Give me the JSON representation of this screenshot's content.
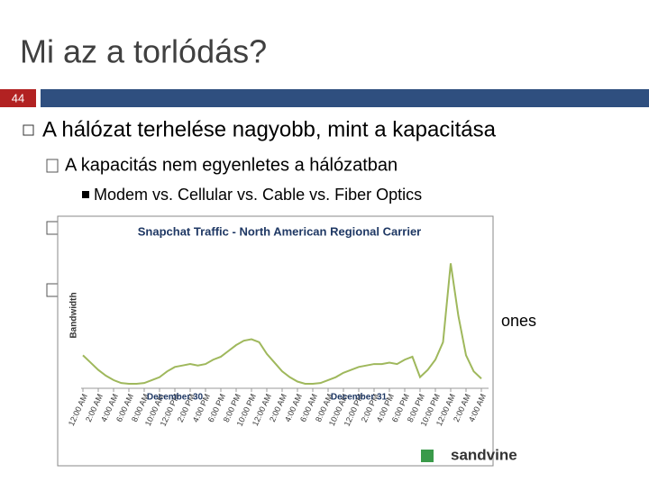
{
  "slide": {
    "title": "Mi az a torlódás?",
    "slide_number": "44",
    "bullets": [
      "A hálózat terhelése nagyobb, mint a kapacitása",
      "A kapacitás nem egyenletes a hálózatban",
      "Modem vs. Cellular vs. Cable vs. Fiber Optics"
    ],
    "fragment": "ones"
  },
  "chart_data": {
    "type": "line",
    "title": "Snapchat Traffic - North American Regional Carrier",
    "y_label": "Bandwidth",
    "color": "#9fb85c",
    "x": [
      0,
      1,
      2,
      3,
      4,
      5,
      6,
      7,
      8,
      9,
      10,
      11,
      12,
      13,
      14,
      15,
      16,
      17,
      18,
      19,
      20,
      21,
      22,
      23,
      24,
      25,
      26,
      27,
      28,
      29,
      30,
      31,
      32,
      33,
      34,
      35,
      36,
      37,
      38,
      39,
      40,
      41,
      42,
      43,
      44,
      45,
      46,
      47,
      48,
      49,
      50,
      51,
      52
    ],
    "values": [
      22,
      17,
      12,
      8,
      5,
      3,
      2.5,
      2.5,
      3,
      5,
      7,
      11,
      14,
      15,
      16,
      15,
      16,
      19,
      21,
      25,
      29,
      32,
      33,
      31,
      23,
      17,
      11,
      7,
      4,
      2.5,
      2.5,
      3,
      5,
      7,
      10,
      12,
      14,
      15,
      16,
      16,
      17,
      16,
      19,
      21,
      7,
      12,
      19,
      31,
      85,
      49,
      22,
      11,
      6
    ],
    "xlim": [
      0,
      53
    ],
    "ylim": [
      0,
      100
    ],
    "xticks": [
      {
        "value": 0,
        "label": "12:00 AM"
      },
      {
        "value": 2,
        "label": "2:00 AM"
      },
      {
        "value": 4,
        "label": "4:00 AM"
      },
      {
        "value": 6,
        "label": "6:00 AM"
      },
      {
        "value": 8,
        "label": "8:00 AM"
      },
      {
        "value": 10,
        "label": "10:00 AM"
      },
      {
        "value": 12,
        "label": "12:00 PM"
      },
      {
        "value": 14,
        "label": "2:00 PM"
      },
      {
        "value": 16,
        "label": "4:00 PM"
      },
      {
        "value": 18,
        "label": "6:00 PM"
      },
      {
        "value": 20,
        "label": "8:00 PM"
      },
      {
        "value": 22,
        "label": "10:00 PM"
      },
      {
        "value": 24,
        "label": "12:00 AM"
      },
      {
        "value": 26,
        "label": "2:00 AM"
      },
      {
        "value": 28,
        "label": "4:00 AM"
      },
      {
        "value": 30,
        "label": "6:00 AM"
      },
      {
        "value": 32,
        "label": "8:00 AM"
      },
      {
        "value": 34,
        "label": "10:00 AM"
      },
      {
        "value": 36,
        "label": "12:00 PM"
      },
      {
        "value": 38,
        "label": "2:00 PM"
      },
      {
        "value": 40,
        "label": "4:00 PM"
      },
      {
        "value": 42,
        "label": "6:00 PM"
      },
      {
        "value": 44,
        "label": "8:00 PM"
      },
      {
        "value": 46,
        "label": "10:00 PM"
      },
      {
        "value": 48,
        "label": "12:00 AM"
      },
      {
        "value": 50,
        "label": "2:00 AM"
      },
      {
        "value": 52,
        "label": "4:00 AM"
      }
    ],
    "day_labels": [
      {
        "value": 12,
        "label": "December 30"
      },
      {
        "value": 36,
        "label": "December 31"
      }
    ],
    "logo": "sandvine"
  }
}
